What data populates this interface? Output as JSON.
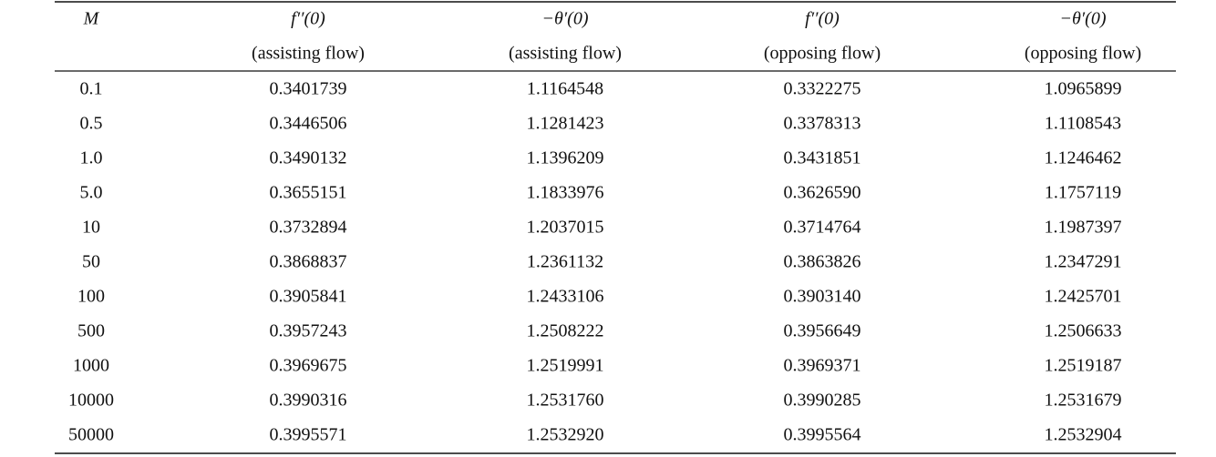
{
  "table": {
    "columns": [
      {
        "symbol": "M"
      },
      {
        "symbol": "f′′(0)",
        "note": "(assisting flow)"
      },
      {
        "symbol": "−θ′(0)",
        "note": "(assisting flow)"
      },
      {
        "symbol": "f′′(0)",
        "note": "(opposing flow)"
      },
      {
        "symbol": "−θ′(0)",
        "note": "(opposing flow)"
      }
    ],
    "rows": [
      [
        "0.1",
        "0.3401739",
        "1.1164548",
        "0.3322275",
        "1.0965899"
      ],
      [
        "0.5",
        "0.3446506",
        "1.1281423",
        "0.3378313",
        "1.1108543"
      ],
      [
        "1.0",
        "0.3490132",
        "1.1396209",
        "0.3431851",
        "1.1246462"
      ],
      [
        "5.0",
        "0.3655151",
        "1.1833976",
        "0.3626590",
        "1.1757119"
      ],
      [
        "10",
        "0.3732894",
        "1.2037015",
        "0.3714764",
        "1.1987397"
      ],
      [
        "50",
        "0.3868837",
        "1.2361132",
        "0.3863826",
        "1.2347291"
      ],
      [
        "100",
        "0.3905841",
        "1.2433106",
        "0.3903140",
        "1.2425701"
      ],
      [
        "500",
        "0.3957243",
        "1.2508222",
        "0.3956649",
        "1.2506633"
      ],
      [
        "1000",
        "0.3969675",
        "1.2519991",
        "0.3969371",
        "1.2519187"
      ],
      [
        "10000",
        "0.3990316",
        "1.2531760",
        "0.3990285",
        "1.2531679"
      ],
      [
        "50000",
        "0.3995571",
        "1.2532920",
        "0.3995564",
        "1.2532904"
      ]
    ]
  }
}
